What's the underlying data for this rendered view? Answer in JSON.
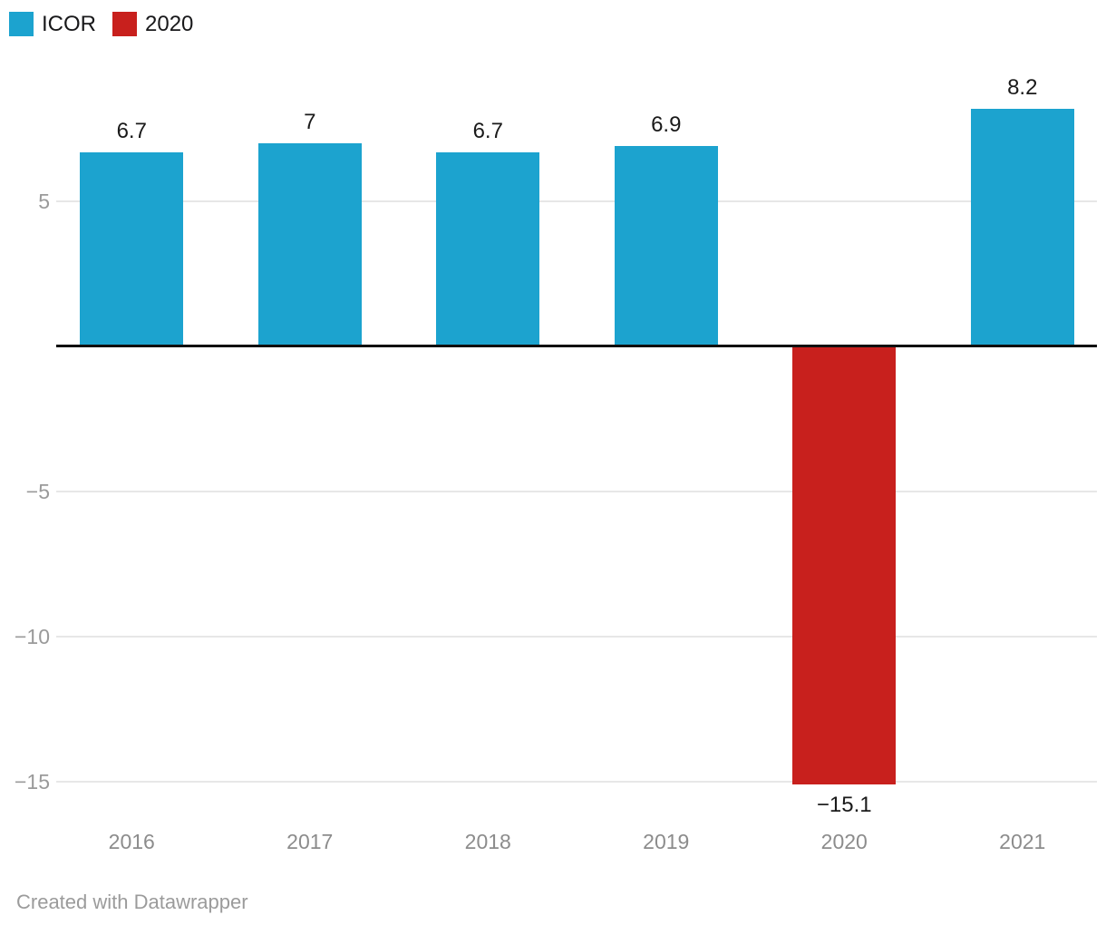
{
  "chart_data": {
    "type": "bar",
    "categories": [
      "2016",
      "2017",
      "2018",
      "2019",
      "2020",
      "2021"
    ],
    "values": [
      6.7,
      7,
      6.7,
      6.9,
      -15.1,
      8.2
    ],
    "value_labels": [
      "6.7",
      "7",
      "6.7",
      "6.9",
      "−15.1",
      "8.2"
    ],
    "bar_colors": [
      "#1ca3cf",
      "#1ca3cf",
      "#1ca3cf",
      "#1ca3cf",
      "#c8201d",
      "#1ca3cf"
    ],
    "title": "",
    "xlabel": "",
    "ylabel": "",
    "ylim": [
      -16.5,
      9.4
    ],
    "yticks": [
      {
        "value": 5,
        "label": "5"
      },
      {
        "value": -5,
        "label": "−5"
      },
      {
        "value": -10,
        "label": "−10"
      },
      {
        "value": -15,
        "label": "−15"
      }
    ],
    "grid": true,
    "baseline": 0,
    "legend_position": "top-left"
  },
  "legend": {
    "items": [
      {
        "label": "ICOR",
        "color": "#1ca3cf"
      },
      {
        "label": "2020",
        "color": "#c8201d"
      }
    ]
  },
  "footer": {
    "credit": "Created with Datawrapper"
  },
  "colors": {
    "blue": "#1ca3cf",
    "red": "#c8201d",
    "axis": "#0f0f0f",
    "grid": "#e7e7e7",
    "tick_label": "#9a9a9a",
    "year_label": "#8c8c8c",
    "value_label": "#1a1a1a",
    "credit": "#9b9b9b",
    "background": "#ffffff"
  }
}
